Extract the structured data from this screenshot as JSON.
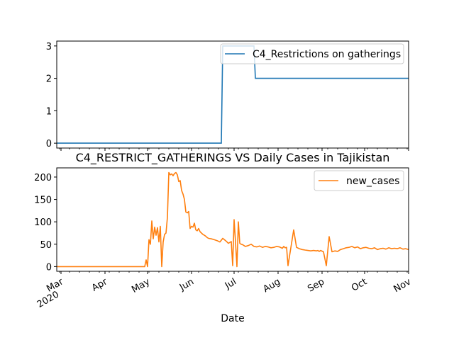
{
  "chart_data": [
    {
      "type": "line",
      "title": "",
      "xlabel": "",
      "ylabel": "",
      "xlim": [
        "2020-02-27",
        "2020-11-01"
      ],
      "ylim": [
        -0.15,
        3.15
      ],
      "yticks": [
        "0",
        "1",
        "2",
        "3"
      ],
      "legend_position": "top-right",
      "series": [
        {
          "name": "C4_Restrictions on gatherings",
          "color": "#1f77b4",
          "x": [
            "2020-02-27",
            "2020-06-22",
            "2020-06-23",
            "2020-07-15",
            "2020-07-16",
            "2020-11-01"
          ],
          "y": [
            0,
            0,
            3,
            3,
            2,
            2
          ]
        }
      ]
    },
    {
      "type": "line",
      "title": "C4_RESTRICT_GATHERINGS VS Daily Cases in Tajikistan",
      "xlabel": "Date",
      "ylabel": "",
      "xlim": [
        "2020-02-27",
        "2020-11-01"
      ],
      "ylim": [
        -10.5,
        220.5
      ],
      "yticks": [
        "0",
        "50",
        "100",
        "150",
        "200"
      ],
      "xticks": [
        {
          "date": "2020-03-01",
          "label": "Mar",
          "sublabel": "2020"
        },
        {
          "date": "2020-04-01",
          "label": "Apr",
          "sublabel": ""
        },
        {
          "date": "2020-05-01",
          "label": "May",
          "sublabel": ""
        },
        {
          "date": "2020-06-01",
          "label": "Jun",
          "sublabel": ""
        },
        {
          "date": "2020-07-01",
          "label": "Jul",
          "sublabel": ""
        },
        {
          "date": "2020-08-01",
          "label": "Aug",
          "sublabel": ""
        },
        {
          "date": "2020-09-01",
          "label": "Sep",
          "sublabel": ""
        },
        {
          "date": "2020-10-01",
          "label": "Oct",
          "sublabel": ""
        },
        {
          "date": "2020-11-01",
          "label": "Nov",
          "sublabel": ""
        }
      ],
      "legend_position": "top-right",
      "series": [
        {
          "name": "new_cases",
          "color": "#ff7f0e",
          "x": [
            "2020-02-27",
            "2020-04-29",
            "2020-04-30",
            "2020-05-01",
            "2020-05-02",
            "2020-05-03",
            "2020-05-04",
            "2020-05-05",
            "2020-05-06",
            "2020-05-07",
            "2020-05-08",
            "2020-05-09",
            "2020-05-10",
            "2020-05-11",
            "2020-05-12",
            "2020-05-13",
            "2020-05-14",
            "2020-05-15",
            "2020-05-16",
            "2020-05-17",
            "2020-05-18",
            "2020-05-19",
            "2020-05-20",
            "2020-05-21",
            "2020-05-22",
            "2020-05-23",
            "2020-05-24",
            "2020-05-25",
            "2020-05-26",
            "2020-05-27",
            "2020-05-28",
            "2020-05-29",
            "2020-05-30",
            "2020-05-31",
            "2020-06-01",
            "2020-06-02",
            "2020-06-03",
            "2020-06-04",
            "2020-06-05",
            "2020-06-06",
            "2020-06-07",
            "2020-06-08",
            "2020-06-09",
            "2020-06-10",
            "2020-06-11",
            "2020-06-12",
            "2020-06-13",
            "2020-06-15",
            "2020-06-17",
            "2020-06-19",
            "2020-06-21",
            "2020-06-23",
            "2020-06-25",
            "2020-06-27",
            "2020-06-29",
            "2020-06-30",
            "2020-07-01",
            "2020-07-02",
            "2020-07-03",
            "2020-07-04",
            "2020-07-05",
            "2020-07-06",
            "2020-07-07",
            "2020-07-09",
            "2020-07-11",
            "2020-07-13",
            "2020-07-15",
            "2020-07-17",
            "2020-07-19",
            "2020-07-21",
            "2020-07-23",
            "2020-07-25",
            "2020-07-27",
            "2020-07-29",
            "2020-07-31",
            "2020-08-02",
            "2020-08-04",
            "2020-08-05",
            "2020-08-06",
            "2020-08-07",
            "2020-08-08",
            "2020-08-10",
            "2020-08-12",
            "2020-08-14",
            "2020-08-16",
            "2020-08-18",
            "2020-08-20",
            "2020-08-22",
            "2020-08-24",
            "2020-08-26",
            "2020-08-28",
            "2020-08-29",
            "2020-08-30",
            "2020-08-31",
            "2020-09-02",
            "2020-09-04",
            "2020-09-06",
            "2020-09-08",
            "2020-09-10",
            "2020-09-12",
            "2020-09-14",
            "2020-09-16",
            "2020-09-18",
            "2020-09-20",
            "2020-09-22",
            "2020-09-24",
            "2020-09-26",
            "2020-09-28",
            "2020-09-30",
            "2020-10-02",
            "2020-10-04",
            "2020-10-06",
            "2020-10-08",
            "2020-10-10",
            "2020-10-12",
            "2020-10-14",
            "2020-10-16",
            "2020-10-18",
            "2020-10-20",
            "2020-10-22",
            "2020-10-24",
            "2020-10-26",
            "2020-10-28",
            "2020-10-30",
            "2020-11-01"
          ],
          "y": [
            0,
            0,
            15,
            0,
            60,
            50,
            102,
            62,
            88,
            70,
            87,
            55,
            90,
            0,
            55,
            72,
            75,
            110,
            210,
            205,
            207,
            203,
            208,
            210,
            205,
            190,
            192,
            170,
            162,
            150,
            122,
            120,
            123,
            85,
            90,
            88,
            97,
            82,
            80,
            85,
            78,
            75,
            72,
            70,
            68,
            65,
            63,
            62,
            60,
            58,
            55,
            63,
            58,
            52,
            56,
            2,
            105,
            55,
            0,
            100,
            52,
            50,
            49,
            45,
            47,
            50,
            45,
            44,
            46,
            43,
            45,
            44,
            42,
            43,
            45,
            44,
            41,
            45,
            42,
            43,
            2,
            42,
            82,
            43,
            40,
            38,
            37,
            36,
            35,
            36,
            35,
            36,
            34,
            36,
            33,
            2,
            67,
            33,
            35,
            34,
            38,
            40,
            42,
            43,
            45,
            42,
            44,
            40,
            42,
            43,
            41,
            40,
            42,
            38,
            40,
            41,
            39,
            42,
            40,
            41,
            40,
            42,
            39,
            40,
            38
          ]
        }
      ]
    }
  ]
}
